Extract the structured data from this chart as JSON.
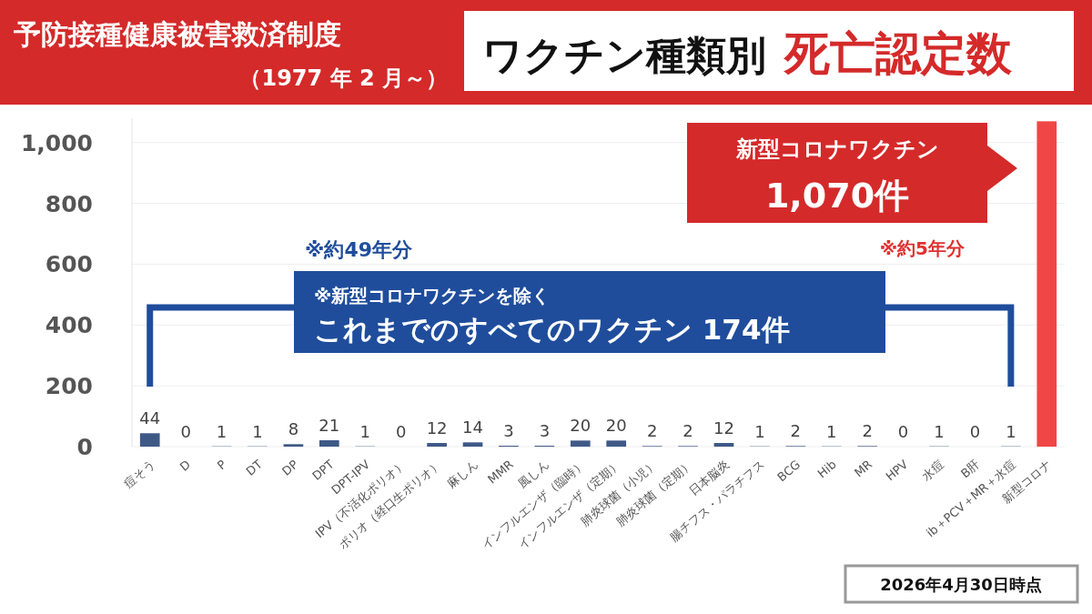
{
  "chart_data": {
    "type": "bar",
    "title": "ワクチン種類別 死亡認定数",
    "subtitle": "予防接種健康被害救済制度",
    "annotations": [
      "（1977 年 2 月～）",
      "※約49年分",
      "※新型コロナワクチンを除く",
      "これまでのすべてのワクチン 174件",
      "新型コロナワクチン",
      "1,070件",
      "※約5年分",
      "2026年4月30日時点"
    ],
    "categories": [
      "痘そう",
      "D",
      "P",
      "DT",
      "DP",
      "DPT",
      "DPT-IPV",
      "IPV（不活化ポリオ）",
      "ポリオ（経口生ポリオ）",
      "麻しん",
      "MMR",
      "風しん",
      "インフルエンザ（臨時）",
      "インフルエンザ（定期）",
      "肺炎球菌（小児）",
      "肺炎球菌（定期）",
      "日本脳炎",
      "腸チフス・パラチフス",
      "BCG",
      "Hib",
      "MR",
      "HPV",
      "水痘",
      "B肝",
      "ib＋PCV＋MR＋水痘",
      "新型コロナ"
    ],
    "values": [
      44,
      0,
      1,
      1,
      8,
      21,
      1,
      0,
      12,
      14,
      3,
      3,
      20,
      20,
      2,
      2,
      12,
      1,
      2,
      1,
      2,
      0,
      1,
      0,
      1,
      1070
    ],
    "value_labels": [
      "44",
      "0",
      "1",
      "1",
      "8",
      "21",
      "1",
      "0",
      "12",
      "14",
      "3",
      "3",
      "20",
      "20",
      "2",
      "2",
      "12",
      "1",
      "2",
      "1",
      "2",
      "0",
      "1",
      "0",
      "1",
      null
    ],
    "colors": [
      "#3f5987",
      "#3f5987",
      "#3f5987",
      "#3f5987",
      "#3f5987",
      "#3f5987",
      "#3f5987",
      "#3f5987",
      "#3f5987",
      "#3f5987",
      "#3f5987",
      "#3f5987",
      "#3f5987",
      "#3f5987",
      "#3f5987",
      "#3f5987",
      "#3f5987",
      "#3f5987",
      "#3f5987",
      "#3f5987",
      "#3f5987",
      "#3f5987",
      "#3f5987",
      "#3f5987",
      "#3f5987",
      "#f04646"
    ],
    "ylim": [
      0,
      1080
    ],
    "yticks": [
      0,
      200,
      400,
      600,
      800,
      {
        "value": 1000,
        "label": "1,000"
      }
    ],
    "grid": "y"
  }
}
